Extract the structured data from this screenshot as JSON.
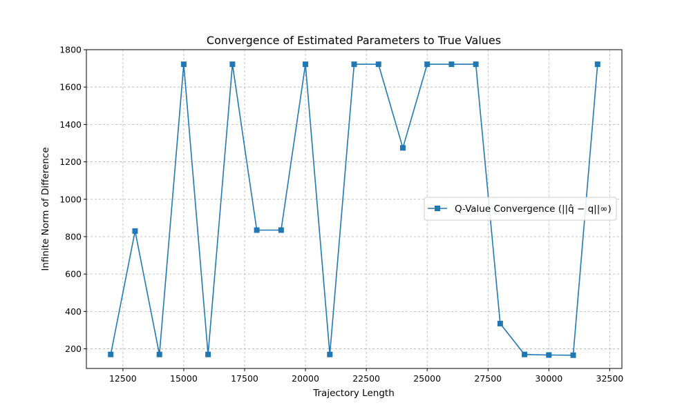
{
  "chart_data": {
    "type": "line",
    "title": "Convergence of Estimated Parameters to True Values",
    "xlabel": "Trajectory Length",
    "ylabel": "Infinite Norm of Difference",
    "xlim": [
      11000,
      33000
    ],
    "ylim": [
      95,
      1800
    ],
    "xticks": [
      12500,
      15000,
      17500,
      20000,
      22500,
      25000,
      27500,
      30000,
      32500
    ],
    "yticks": [
      200,
      400,
      600,
      800,
      1000,
      1200,
      1400,
      1600,
      1800
    ],
    "grid": true,
    "legend_position": "center-right",
    "series": [
      {
        "name": "Q-Value Convergence (||q̂ − q||∞)",
        "color": "#1f77b4",
        "marker": "square",
        "x": [
          12000,
          13000,
          14000,
          15000,
          16000,
          17000,
          18000,
          19000,
          20000,
          21000,
          22000,
          23000,
          24000,
          25000,
          26000,
          27000,
          28000,
          29000,
          30000,
          31000,
          32000
        ],
        "y": [
          170,
          830,
          170,
          1722,
          170,
          1722,
          835,
          835,
          1722,
          170,
          1722,
          1722,
          1275,
          1722,
          1722,
          1722,
          335,
          170,
          167,
          166,
          1722
        ]
      }
    ]
  }
}
